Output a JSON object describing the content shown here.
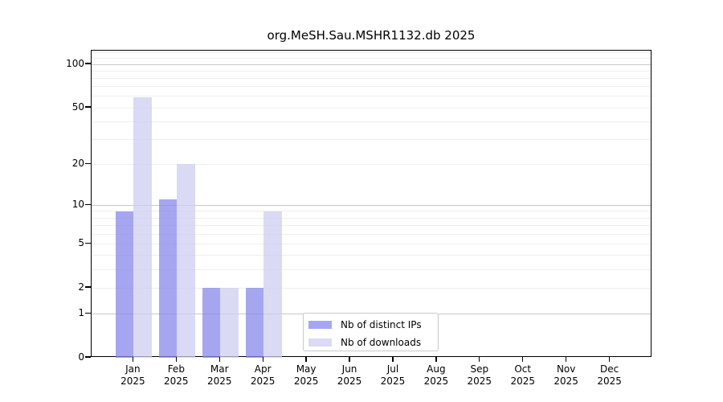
{
  "chart_data": {
    "type": "bar",
    "title": "org.MeSH.Sau.MSHR1132.db 2025",
    "categories": [
      "Jan",
      "Feb",
      "Mar",
      "Apr",
      "May",
      "Jun",
      "Jul",
      "Aug",
      "Sep",
      "Oct",
      "Nov",
      "Dec"
    ],
    "x_sublabel": "2025",
    "series": [
      {
        "name": "Nb of distinct IPs",
        "color": "#a6a6f0",
        "values": [
          9,
          11,
          2,
          2,
          0,
          0,
          0,
          0,
          0,
          0,
          0,
          0
        ]
      },
      {
        "name": "Nb of downloads",
        "color": "#dadaf5",
        "values": [
          59,
          20,
          2,
          9,
          0,
          0,
          0,
          0,
          0,
          0,
          0,
          0
        ]
      }
    ],
    "yscale": "log1p",
    "ylim": [
      0,
      124
    ],
    "yticks": [
      0,
      1,
      2,
      5,
      10,
      20,
      50,
      100
    ],
    "grid": {
      "orientation": "horizontal",
      "major": [
        1,
        10,
        100
      ],
      "minor": [
        2,
        3,
        4,
        5,
        6,
        7,
        8,
        9,
        20,
        30,
        40,
        50,
        60,
        70,
        80,
        90,
        110,
        120
      ]
    },
    "legend_position": "bottom-center",
    "colors": {
      "major_grid": "#c8c8c8",
      "minor_grid": "#eeeeee",
      "spine": "#000000",
      "background": "#ffffff",
      "bar_alpha": 0.75
    }
  }
}
